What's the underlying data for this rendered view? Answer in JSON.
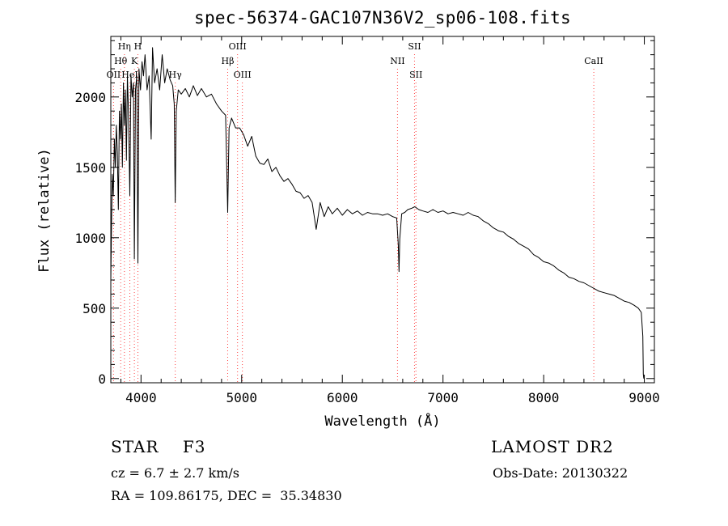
{
  "header": {
    "title": "spec-56374-GAC107N36V2_sp06-108.fits"
  },
  "info": {
    "class_line": "STAR    F3",
    "cz_line": "cz = 6.7 ± 2.7 km/s",
    "radec_line": "RA = 109.86175, DEC =  35.34830",
    "survey": "LAMOST DR2",
    "obs_date": "Obs-Date: 20130322"
  },
  "chart_data": {
    "type": "line",
    "title": "spec-56374-GAC107N36V2_sp06-108.fits",
    "xlabel": "Wavelength (Å)",
    "ylabel": "Flux (relative)",
    "xlim": [
      3700,
      9100
    ],
    "ylim": [
      -30,
      2430
    ],
    "xticks": [
      4000,
      5000,
      6000,
      7000,
      8000,
      9000
    ],
    "yticks": [
      0,
      500,
      1000,
      1500,
      2000
    ],
    "grid": false,
    "line_color": "#000000",
    "marker_color": "#ff4444",
    "spectral_lines": [
      {
        "label": "OII",
        "x": 3727,
        "row": 3
      },
      {
        "label": "Hθ",
        "x": 3798,
        "row": 2
      },
      {
        "label": "Hη",
        "x": 3835,
        "row": 1
      },
      {
        "label": "HeI",
        "x": 3889,
        "row": 3
      },
      {
        "label": "K",
        "x": 3934,
        "row": 2
      },
      {
        "label": "H",
        "x": 3969,
        "row": 1
      },
      {
        "label": "Hγ",
        "x": 4340,
        "row": 3
      },
      {
        "label": "Hβ",
        "x": 4861,
        "row": 2
      },
      {
        "label": "OIII",
        "x": 4959,
        "row": 1
      },
      {
        "label": "OIII",
        "x": 5007,
        "row": 3
      },
      {
        "label": "NII",
        "x": 6548,
        "row": 2
      },
      {
        "label": "SII",
        "x": 6717,
        "row": 1
      },
      {
        "label": "SII",
        "x": 6731,
        "row": 3
      },
      {
        "label": "CaII",
        "x": 8498,
        "row": 2
      }
    ],
    "series": [
      {
        "values": [
          [
            3700,
            700
          ],
          [
            3708,
            1150
          ],
          [
            3715,
            1450
          ],
          [
            3725,
            1300
          ],
          [
            3735,
            1700
          ],
          [
            3745,
            1500
          ],
          [
            3755,
            1800
          ],
          [
            3765,
            1600
          ],
          [
            3775,
            1200
          ],
          [
            3785,
            1900
          ],
          [
            3795,
            1700
          ],
          [
            3805,
            1950
          ],
          [
            3815,
            1500
          ],
          [
            3825,
            2100
          ],
          [
            3835,
            1800
          ],
          [
            3845,
            2050
          ],
          [
            3855,
            1550
          ],
          [
            3865,
            2150
          ],
          [
            3875,
            1900
          ],
          [
            3889,
            1300
          ],
          [
            3900,
            2150
          ],
          [
            3912,
            2000
          ],
          [
            3925,
            2100
          ],
          [
            3934,
            850
          ],
          [
            3945,
            2050
          ],
          [
            3958,
            2150
          ],
          [
            3969,
            820
          ],
          [
            3980,
            2200
          ],
          [
            3995,
            2050
          ],
          [
            4010,
            2250
          ],
          [
            4025,
            2150
          ],
          [
            4040,
            2300
          ],
          [
            4060,
            2050
          ],
          [
            4080,
            2150
          ],
          [
            4101,
            1700
          ],
          [
            4115,
            2350
          ],
          [
            4135,
            2100
          ],
          [
            4160,
            2200
          ],
          [
            4185,
            2050
          ],
          [
            4210,
            2300
          ],
          [
            4235,
            2100
          ],
          [
            4260,
            2200
          ],
          [
            4290,
            2120
          ],
          [
            4315,
            2080
          ],
          [
            4330,
            1950
          ],
          [
            4340,
            1250
          ],
          [
            4350,
            1900
          ],
          [
            4370,
            2050
          ],
          [
            4400,
            2020
          ],
          [
            4440,
            2060
          ],
          [
            4480,
            2000
          ],
          [
            4520,
            2080
          ],
          [
            4560,
            2010
          ],
          [
            4600,
            2060
          ],
          [
            4650,
            2000
          ],
          [
            4700,
            2020
          ],
          [
            4750,
            1950
          ],
          [
            4800,
            1900
          ],
          [
            4840,
            1870
          ],
          [
            4861,
            1180
          ],
          [
            4875,
            1780
          ],
          [
            4900,
            1850
          ],
          [
            4940,
            1780
          ],
          [
            4980,
            1780
          ],
          [
            5020,
            1730
          ],
          [
            5060,
            1650
          ],
          [
            5100,
            1720
          ],
          [
            5140,
            1580
          ],
          [
            5180,
            1530
          ],
          [
            5220,
            1520
          ],
          [
            5260,
            1560
          ],
          [
            5300,
            1470
          ],
          [
            5340,
            1500
          ],
          [
            5380,
            1440
          ],
          [
            5420,
            1400
          ],
          [
            5460,
            1420
          ],
          [
            5500,
            1380
          ],
          [
            5540,
            1330
          ],
          [
            5580,
            1320
          ],
          [
            5620,
            1280
          ],
          [
            5660,
            1300
          ],
          [
            5700,
            1250
          ],
          [
            5740,
            1060
          ],
          [
            5780,
            1250
          ],
          [
            5820,
            1150
          ],
          [
            5860,
            1220
          ],
          [
            5900,
            1170
          ],
          [
            5950,
            1210
          ],
          [
            6000,
            1160
          ],
          [
            6050,
            1200
          ],
          [
            6100,
            1170
          ],
          [
            6150,
            1190
          ],
          [
            6200,
            1160
          ],
          [
            6250,
            1180
          ],
          [
            6300,
            1170
          ],
          [
            6350,
            1170
          ],
          [
            6400,
            1160
          ],
          [
            6450,
            1170
          ],
          [
            6500,
            1150
          ],
          [
            6540,
            1140
          ],
          [
            6556,
            950
          ],
          [
            6563,
            760
          ],
          [
            6570,
            990
          ],
          [
            6590,
            1170
          ],
          [
            6620,
            1180
          ],
          [
            6650,
            1200
          ],
          [
            6690,
            1210
          ],
          [
            6720,
            1220
          ],
          [
            6760,
            1200
          ],
          [
            6800,
            1190
          ],
          [
            6850,
            1180
          ],
          [
            6900,
            1200
          ],
          [
            6950,
            1180
          ],
          [
            7000,
            1190
          ],
          [
            7050,
            1170
          ],
          [
            7100,
            1180
          ],
          [
            7150,
            1170
          ],
          [
            7200,
            1160
          ],
          [
            7250,
            1180
          ],
          [
            7300,
            1160
          ],
          [
            7350,
            1150
          ],
          [
            7400,
            1120
          ],
          [
            7450,
            1100
          ],
          [
            7500,
            1070
          ],
          [
            7550,
            1050
          ],
          [
            7600,
            1040
          ],
          [
            7650,
            1010
          ],
          [
            7700,
            990
          ],
          [
            7750,
            960
          ],
          [
            7800,
            940
          ],
          [
            7850,
            920
          ],
          [
            7900,
            880
          ],
          [
            7950,
            860
          ],
          [
            8000,
            830
          ],
          [
            8050,
            820
          ],
          [
            8100,
            800
          ],
          [
            8150,
            770
          ],
          [
            8200,
            750
          ],
          [
            8250,
            720
          ],
          [
            8300,
            710
          ],
          [
            8350,
            690
          ],
          [
            8400,
            680
          ],
          [
            8450,
            660
          ],
          [
            8500,
            640
          ],
          [
            8550,
            620
          ],
          [
            8600,
            610
          ],
          [
            8650,
            600
          ],
          [
            8700,
            590
          ],
          [
            8750,
            570
          ],
          [
            8800,
            550
          ],
          [
            8850,
            540
          ],
          [
            8900,
            520
          ],
          [
            8940,
            500
          ],
          [
            8970,
            470
          ],
          [
            8985,
            300
          ],
          [
            8990,
            30
          ],
          [
            8995,
            0
          ]
        ]
      }
    ]
  }
}
